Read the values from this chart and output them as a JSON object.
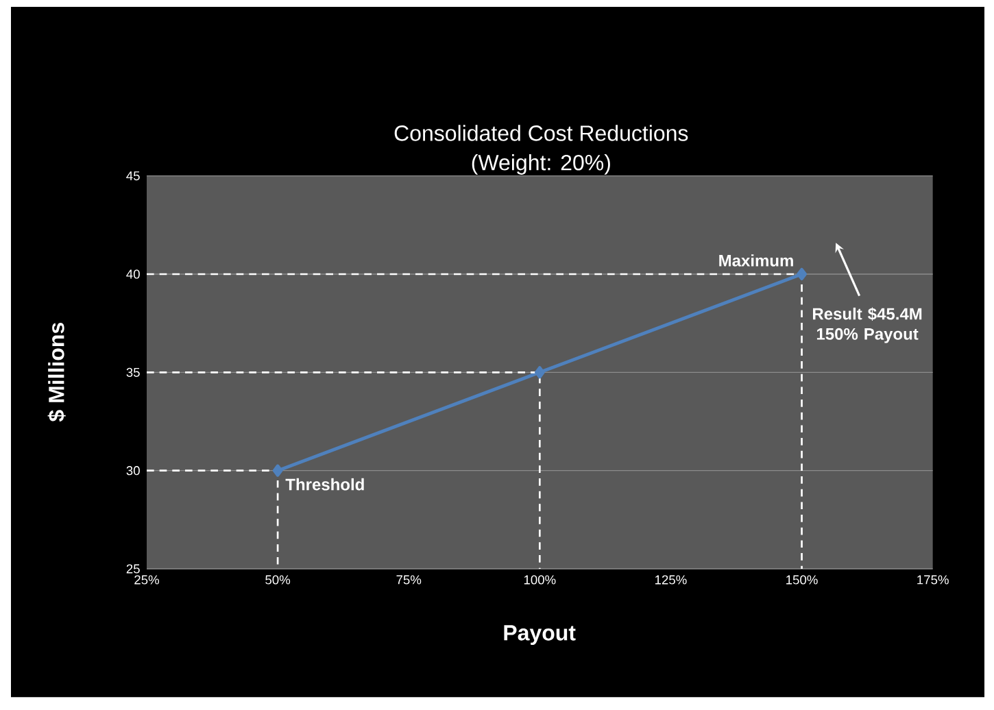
{
  "chart_data": {
    "type": "line",
    "title": "Consolidated Cost Reductions",
    "subtitle": "(Weight: 20%)",
    "xlabel": "Payout",
    "ylabel": "$ Millions",
    "xlim": [
      25,
      175
    ],
    "ylim": [
      25,
      45
    ],
    "xticks": [
      {
        "value": 25,
        "label": "25%"
      },
      {
        "value": 50,
        "label": "50%"
      },
      {
        "value": 75,
        "label": "75%"
      },
      {
        "value": 100,
        "label": "100%"
      },
      {
        "value": 125,
        "label": "125%"
      },
      {
        "value": 150,
        "label": "150%"
      },
      {
        "value": 175,
        "label": "175%"
      }
    ],
    "yticks": [
      25,
      30,
      35,
      40,
      45
    ],
    "grid": "y",
    "marker": "diamond",
    "series": [
      {
        "color": "#4f81bd",
        "x": [
          50,
          100,
          150
        ],
        "values": [
          30,
          35,
          40
        ]
      },
      {
        "type": "line",
        "line_style": "dashed",
        "marker": "none",
        "color": "#ffffff",
        "x": [
          25,
          50,
          50
        ],
        "values": [
          30,
          30,
          25
        ]
      },
      {
        "type": "line",
        "line_style": "dashed",
        "marker": "none",
        "color": "#ffffff",
        "x": [
          25,
          100,
          100
        ],
        "values": [
          35,
          35,
          25
        ]
      },
      {
        "type": "line",
        "line_style": "dashed",
        "marker": "none",
        "color": "#ffffff",
        "x": [
          25,
          150,
          150
        ],
        "values": [
          40,
          40,
          25
        ]
      }
    ],
    "annotations": [
      {
        "text": "Threshold",
        "x": 50,
        "y": 30
      },
      {
        "text": "Maximum",
        "x": 150,
        "y": 40
      },
      "Result $45.4M 150% Payout"
    ]
  }
}
